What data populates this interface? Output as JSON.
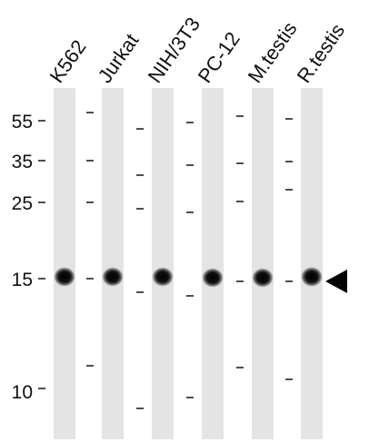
{
  "figure": {
    "type": "western-blot",
    "lanes": [
      {
        "label": "K562",
        "band_intensity": 0.95,
        "marker_ticks_kda": [
          55,
          35,
          25,
          15,
          10
        ]
      },
      {
        "label": "Jurkat",
        "band_intensity": 0.9,
        "marker_ticks_kda": [
          55,
          35,
          25,
          15,
          10
        ]
      },
      {
        "label": "NIH/3T3",
        "band_intensity": 0.9,
        "marker_ticks_kda": [
          55,
          35,
          25,
          15,
          10
        ]
      },
      {
        "label": "PC-12",
        "band_intensity": 0.9,
        "marker_ticks_kda": [
          55,
          35,
          25,
          15,
          10
        ]
      },
      {
        "label": "M.testis",
        "band_intensity": 0.9,
        "marker_ticks_kda": [
          55,
          35,
          25,
          15,
          10
        ]
      },
      {
        "label": "R.testis",
        "band_intensity": 1.0,
        "marker_ticks_kda": [
          55,
          35,
          25,
          15,
          10
        ]
      }
    ],
    "mw_markers": [
      {
        "label": "55",
        "kda": 55
      },
      {
        "label": "35",
        "kda": 35
      },
      {
        "label": "25",
        "kda": 25
      },
      {
        "label": "15",
        "kda": 15
      },
      {
        "label": "10",
        "kda": 10
      }
    ],
    "target_band_kda": 15,
    "arrow": "band-arrow"
  }
}
